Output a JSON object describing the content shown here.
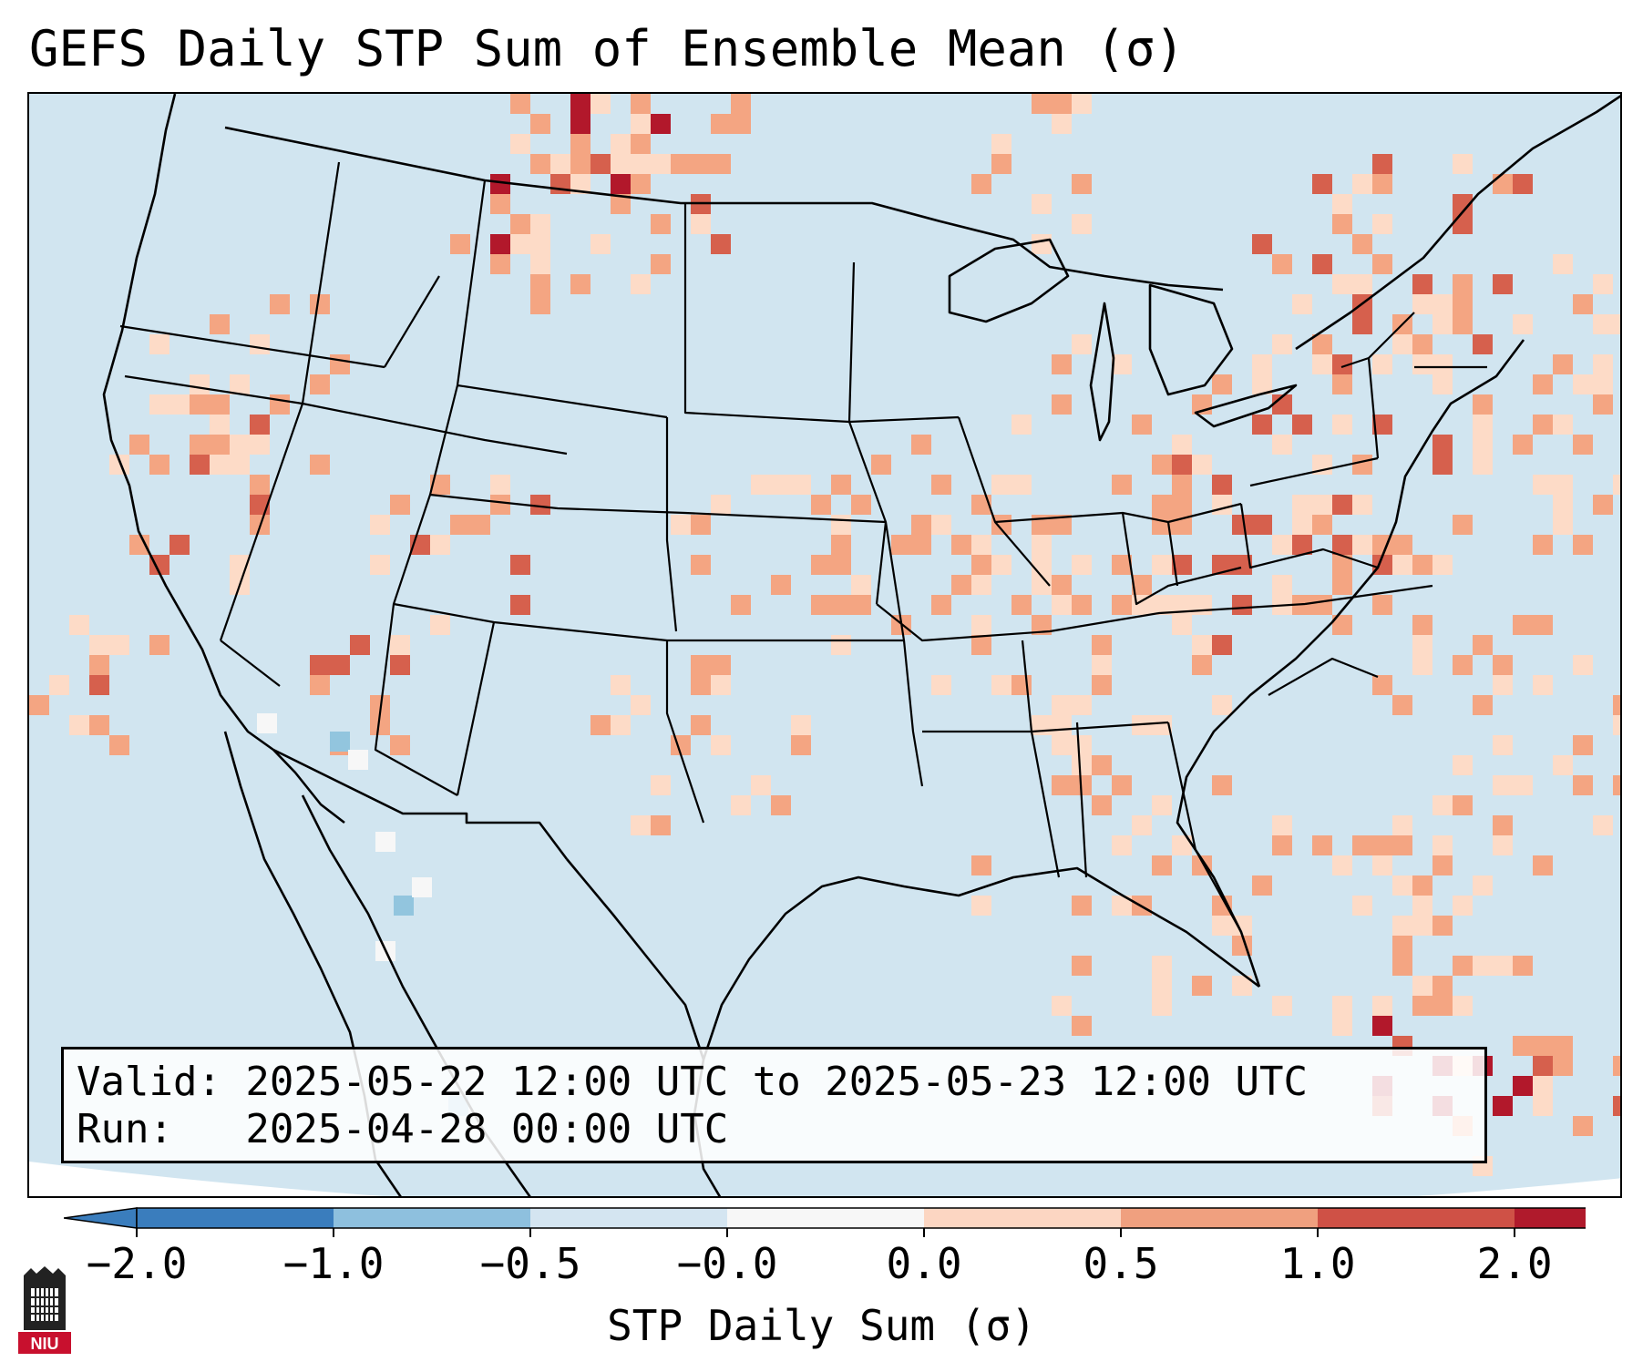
{
  "header": {
    "title": "GEFS Daily STP Sum of Ensemble Mean (σ)"
  },
  "info_box": {
    "valid_line": "Valid: 2025-05-22 12:00 UTC to 2025-05-23 12:00 UTC",
    "run_line": "Run:   2025-04-28 00:00 UTC"
  },
  "colorbar": {
    "label": "STP Daily Sum (σ)",
    "ticks": [
      "−2.0",
      "−1.0",
      "−0.5",
      "−0.0",
      "0.0",
      "0.5",
      "1.0",
      "2.0"
    ],
    "colors": [
      "#3a7dbd",
      "#8ec0de",
      "#d4e5f1",
      "#f7f7f7",
      "#fcd6c2",
      "#f0a07f",
      "#cf5146",
      "#b01a2c"
    ],
    "extend": "both"
  },
  "map": {
    "region": "Continental United States",
    "background_color": "#d1e5f0",
    "anomaly_colors": {
      "light_positive": "#fddbc7",
      "medium_positive": "#f4a582",
      "strong_positive": "#d6604d",
      "extreme_positive": "#b2182b",
      "light_negative": "#92c5de",
      "near_zero": "#f7f7f7"
    }
  },
  "logo": {
    "text": "NIU"
  }
}
